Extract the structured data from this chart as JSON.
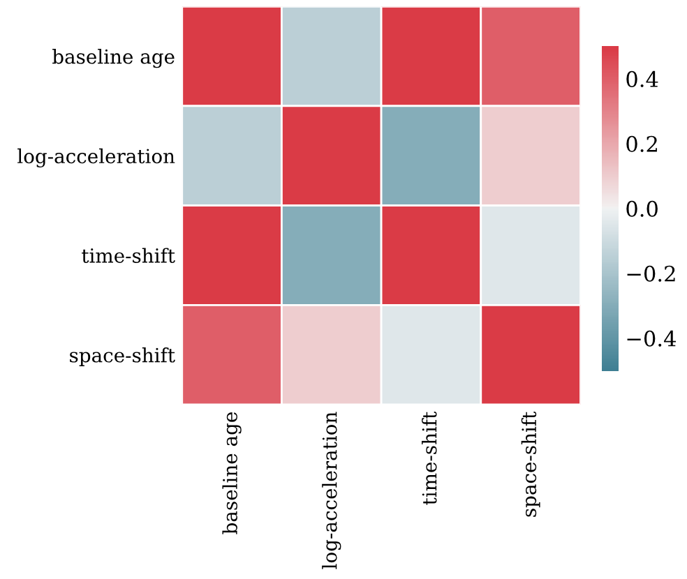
{
  "chart_data": {
    "type": "heatmap",
    "categories": [
      "baseline age",
      "log-acceleration",
      "time-shift",
      "space-shift"
    ],
    "y_categories": [
      "baseline age",
      "log-acceleration",
      "time-shift",
      "space-shift"
    ],
    "cells": [
      [
        0.5,
        -0.15,
        0.5,
        0.4
      ],
      [
        -0.15,
        0.5,
        -0.3,
        0.1
      ],
      [
        0.5,
        -0.3,
        0.5,
        -0.05
      ],
      [
        0.4,
        0.1,
        -0.05,
        0.5
      ]
    ],
    "clim": [
      -0.5,
      0.5
    ],
    "cticks": [
      {
        "value": -0.4,
        "label": "−0.4"
      },
      {
        "value": -0.2,
        "label": "−0.2"
      },
      {
        "value": 0.0,
        "label": "0.0"
      },
      {
        "value": 0.2,
        "label": "0.2"
      },
      {
        "value": 0.4,
        "label": "0.4"
      }
    ]
  }
}
